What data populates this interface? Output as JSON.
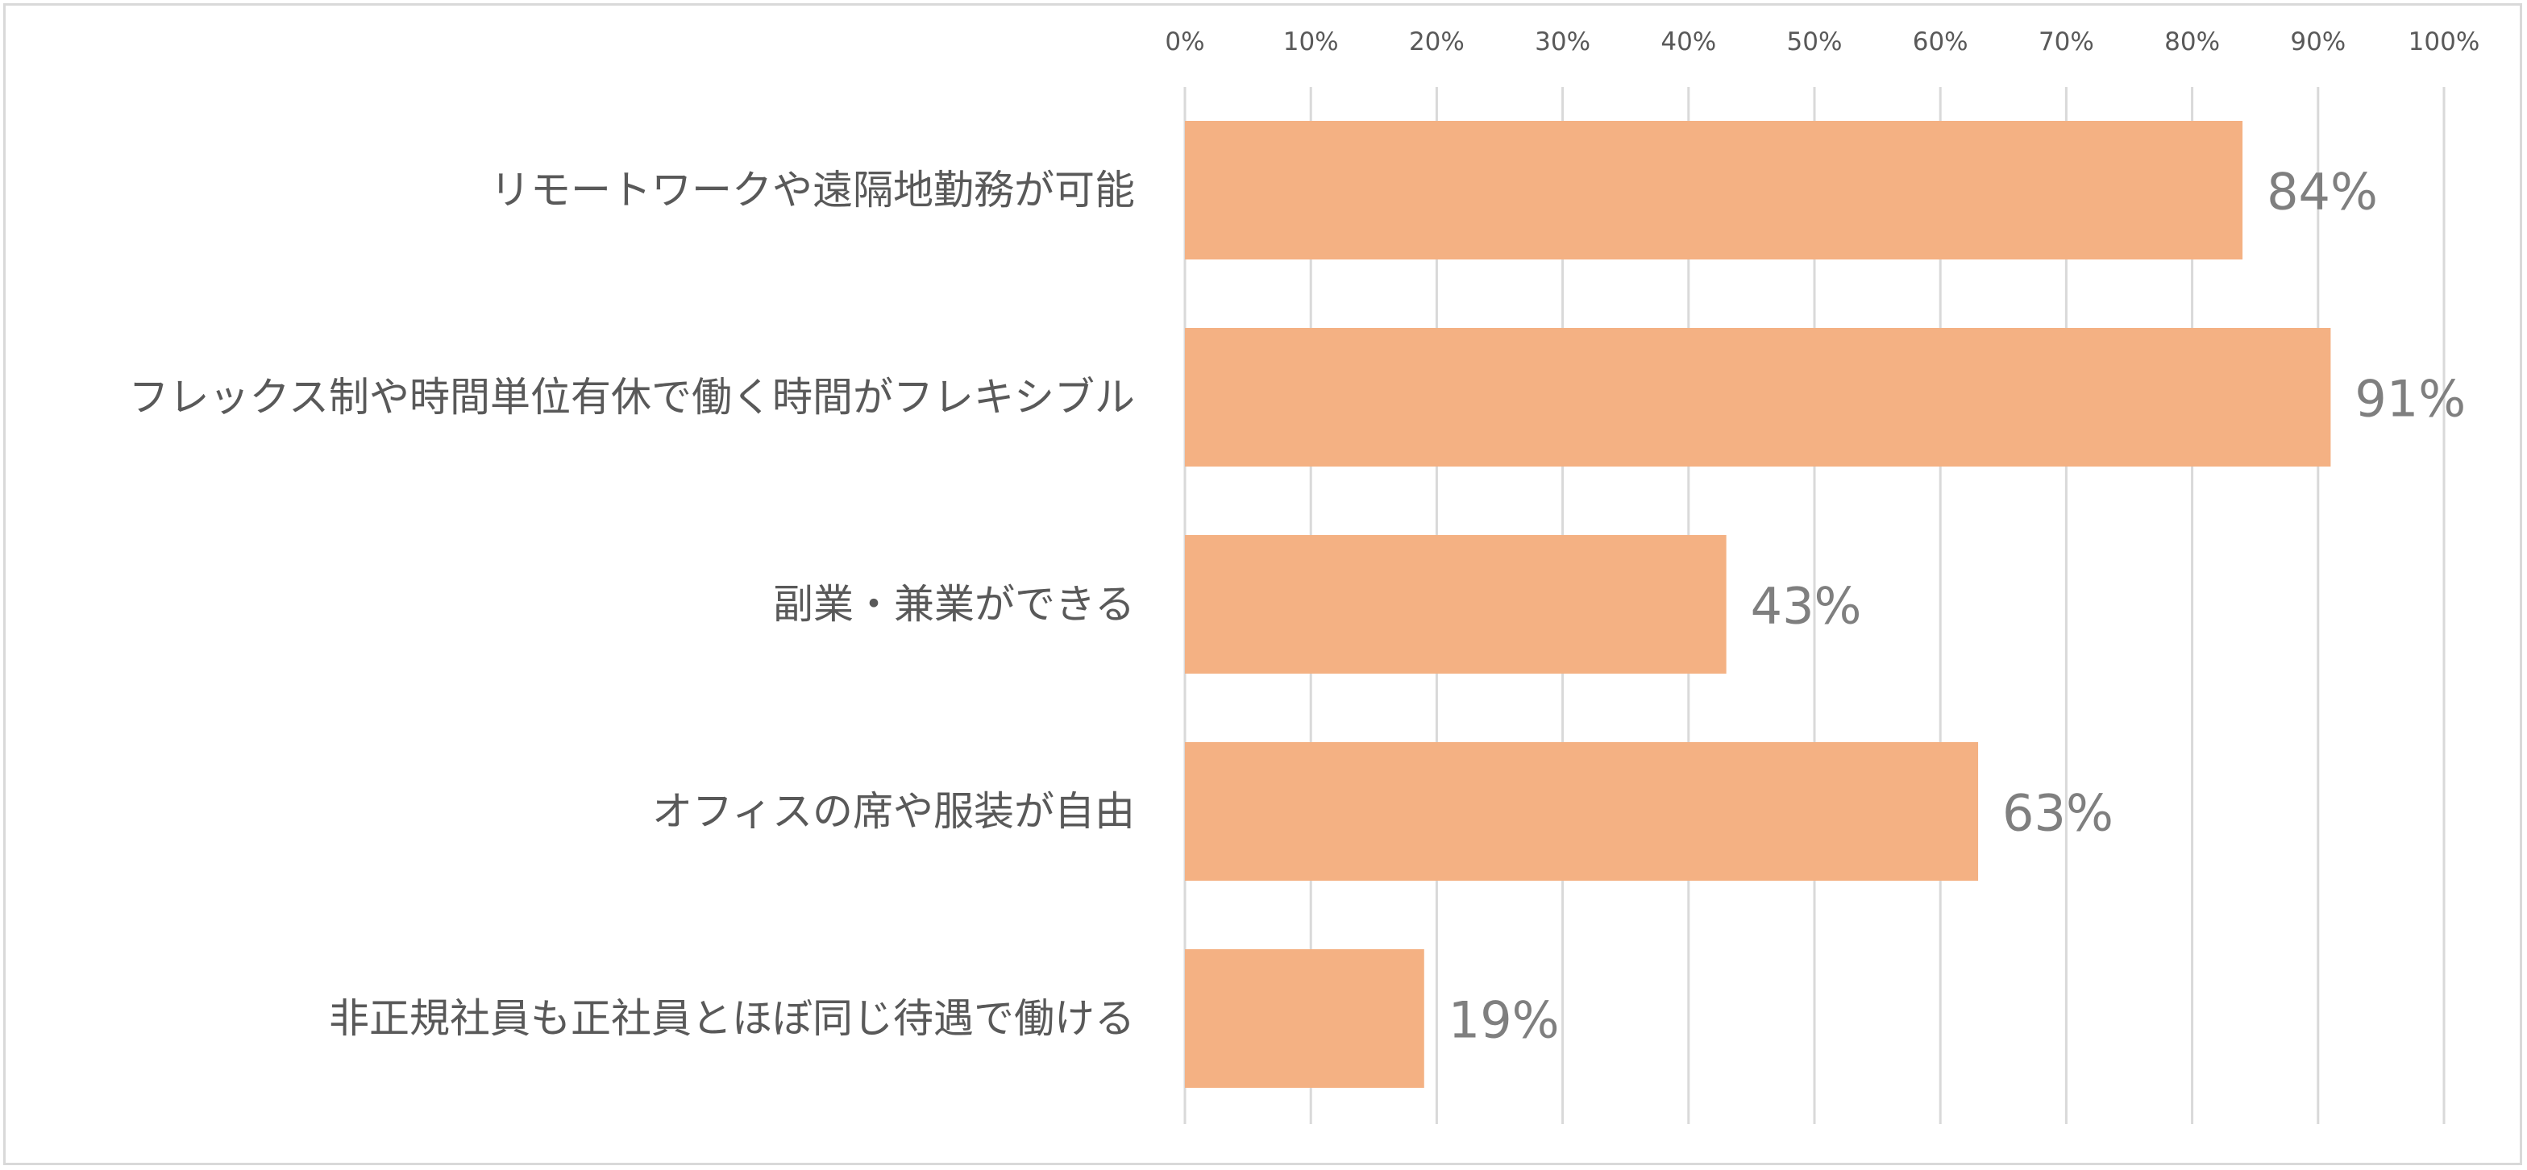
{
  "chart_data": {
    "type": "bar",
    "orientation": "horizontal",
    "title": "",
    "xlabel": "",
    "ylabel": "",
    "xlim": [
      0,
      100
    ],
    "x_ticks": [
      "0%",
      "10%",
      "20%",
      "30%",
      "40%",
      "50%",
      "60%",
      "70%",
      "80%",
      "90%",
      "100%"
    ],
    "x_tick_values": [
      0,
      10,
      20,
      30,
      40,
      50,
      60,
      70,
      80,
      90,
      100
    ],
    "x_axis_position": "top",
    "grid": true,
    "legend": "none",
    "categories": [
      "リモートワークや遠隔地勤務が可能",
      "フレックス制や時間単位有休で働く時間がフレキシブル",
      "副業・兼業ができる",
      "オフィスの席や服装が自由",
      "非正規社員も正社員とほぼ同じ待遇で働ける"
    ],
    "values": [
      84,
      91,
      43,
      63,
      19
    ],
    "data_labels": [
      "84%",
      "91%",
      "43%",
      "63%",
      "19%"
    ],
    "colors": {
      "bar": "#f4b183",
      "grid": "#d9d9d9",
      "tick_text": "#595959",
      "category_text": "#595959",
      "data_label_text": "#7f7f7f",
      "border": "#d9d9d9"
    }
  }
}
